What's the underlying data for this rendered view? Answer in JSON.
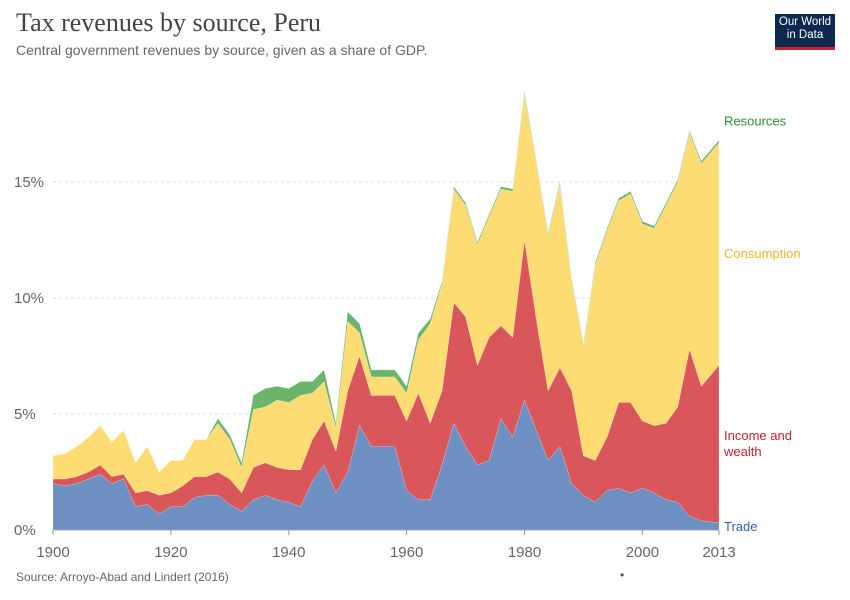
{
  "title": "Tax revenues by source, Peru",
  "subtitle": "Central government revenues by source, given as a share of GDP.",
  "logo": {
    "line1": "Our World",
    "line2": "in Data"
  },
  "source": "Source: Arroyo-Abad and Lindert (2016)",
  "colors": {
    "trade": "#6d8fc2",
    "income": "#d9575b",
    "consumption": "#fcdc73",
    "resources": "#6ab46b",
    "trade_label": "#3360a9",
    "income_label": "#b8262d",
    "consumption_label": "#e5b92a",
    "resources_label": "#2f8a3a"
  },
  "chart_data": {
    "type": "area",
    "stacked": true,
    "title": "Tax revenues by source, Peru",
    "subtitle": "Central government revenues by source, given as a share of GDP.",
    "xlabel": "",
    "ylabel": "",
    "x_ticks": [
      1900,
      1920,
      1940,
      1960,
      1980,
      2000,
      2013
    ],
    "y_ticks": [
      {
        "value": 0,
        "label": "0%"
      },
      {
        "value": 5,
        "label": "5%"
      },
      {
        "value": 10,
        "label": "10%"
      },
      {
        "value": 15,
        "label": "15%"
      }
    ],
    "ylim": [
      0,
      19.5
    ],
    "xlim": [
      1900,
      2013
    ],
    "grid": "horizontal dashed",
    "legend": "right (inline labels)",
    "x": [
      1900,
      1902,
      1904,
      1906,
      1908,
      1910,
      1912,
      1914,
      1916,
      1918,
      1920,
      1922,
      1924,
      1926,
      1928,
      1930,
      1932,
      1934,
      1936,
      1938,
      1940,
      1942,
      1944,
      1946,
      1948,
      1950,
      1952,
      1954,
      1956,
      1958,
      1960,
      1962,
      1964,
      1966,
      1968,
      1970,
      1972,
      1974,
      1976,
      1978,
      1980,
      1982,
      1984,
      1986,
      1988,
      1990,
      1992,
      1994,
      1996,
      1998,
      2000,
      2002,
      2004,
      2006,
      2008,
      2010,
      2013
    ],
    "series": [
      {
        "name": "Trade",
        "label": "Trade",
        "values": [
          2.0,
          1.9,
          2.0,
          2.2,
          2.4,
          2.0,
          2.2,
          1.0,
          1.1,
          0.7,
          1.0,
          1.0,
          1.4,
          1.5,
          1.5,
          1.1,
          0.8,
          1.3,
          1.5,
          1.3,
          1.2,
          1.0,
          2.1,
          2.8,
          1.6,
          2.5,
          4.5,
          3.6,
          3.6,
          3.6,
          1.7,
          1.3,
          1.3,
          2.8,
          4.6,
          3.6,
          2.8,
          3.0,
          4.8,
          4.0,
          5.6,
          4.3,
          3.0,
          3.6,
          2.0,
          1.5,
          1.2,
          1.7,
          1.8,
          1.6,
          1.8,
          1.6,
          1.3,
          1.2,
          0.6,
          0.4,
          0.3
        ]
      },
      {
        "name": "Income and wealth",
        "label": "Income and\nwealth",
        "values": [
          0.2,
          0.3,
          0.3,
          0.3,
          0.4,
          0.3,
          0.2,
          0.6,
          0.6,
          0.8,
          0.6,
          0.9,
          0.9,
          0.8,
          1.0,
          1.1,
          0.8,
          1.4,
          1.4,
          1.4,
          1.4,
          1.6,
          1.8,
          1.9,
          1.8,
          3.5,
          3.0,
          2.2,
          2.2,
          2.2,
          3.0,
          4.6,
          3.3,
          3.2,
          5.2,
          5.6,
          4.3,
          5.3,
          4.0,
          4.3,
          6.9,
          4.8,
          3.0,
          3.4,
          4.0,
          1.7,
          1.8,
          2.3,
          3.7,
          3.9,
          2.9,
          2.9,
          3.3,
          4.1,
          7.2,
          5.8,
          6.8
        ]
      },
      {
        "name": "Consumption",
        "label": "Consumption",
        "values": [
          1.0,
          1.1,
          1.3,
          1.5,
          1.7,
          1.5,
          1.9,
          1.3,
          1.9,
          1.0,
          1.4,
          1.1,
          1.6,
          1.6,
          2.1,
          1.7,
          1.1,
          2.5,
          2.4,
          2.9,
          2.9,
          3.2,
          2.0,
          1.7,
          1.0,
          3.0,
          1.0,
          0.8,
          0.8,
          0.8,
          1.2,
          2.3,
          4.3,
          4.6,
          4.9,
          4.8,
          5.2,
          5.2,
          5.9,
          6.3,
          6.3,
          6.7,
          6.7,
          7.9,
          4.7,
          4.7,
          8.4,
          8.9,
          8.7,
          9.0,
          8.5,
          8.5,
          9.4,
          9.7,
          9.3,
          9.6,
          9.6
        ]
      },
      {
        "name": "Resources",
        "label": "Resources",
        "values": [
          0.0,
          0.0,
          0.0,
          0.0,
          0.0,
          0.0,
          0.0,
          0.0,
          0.0,
          0.0,
          0.0,
          0.0,
          0.0,
          0.0,
          0.2,
          0.2,
          0.2,
          0.6,
          0.8,
          0.6,
          0.6,
          0.6,
          0.5,
          0.5,
          0.2,
          0.4,
          0.4,
          0.3,
          0.3,
          0.3,
          0.3,
          0.3,
          0.2,
          0.1,
          0.1,
          0.1,
          0.1,
          0.1,
          0.1,
          0.1,
          0.1,
          0.1,
          0.1,
          0.1,
          0.1,
          0.1,
          0.1,
          0.1,
          0.1,
          0.1,
          0.1,
          0.1,
          0.1,
          0.1,
          0.1,
          0.1,
          0.1
        ]
      }
    ]
  }
}
